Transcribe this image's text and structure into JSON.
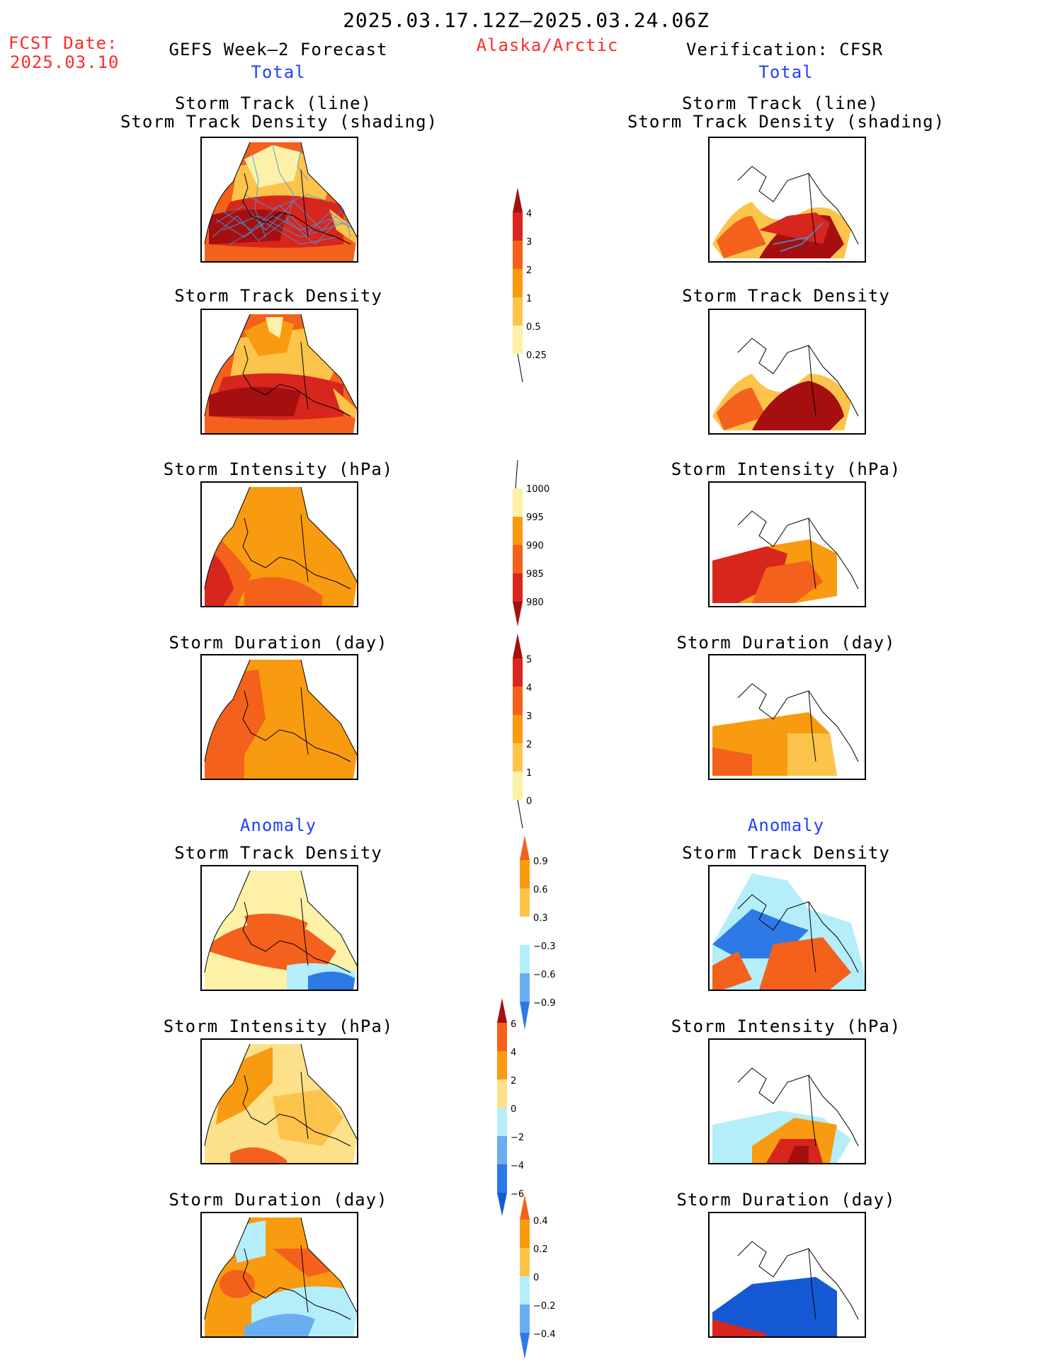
{
  "header": {
    "period": "2025.03.17.12Z–2025.03.24.06Z",
    "fcst_label": "FCST Date:",
    "fcst_date": "2025.03.10",
    "left_title": "GEFS Week–2 Forecast",
    "region": "Alaska/Arctic",
    "right_title": "Verification: CFSR"
  },
  "sections": {
    "total": "Total",
    "anomaly": "Anomaly"
  },
  "panel_titles": {
    "track_line": "Storm Track (line)",
    "track_density_shading": "Storm Track Density (shading)",
    "track_density": "Storm Track Density",
    "intensity": "Storm Intensity (hPa)",
    "duration": "Storm Duration (day)"
  },
  "colorbars": {
    "density": [
      "4",
      "3",
      "2",
      "1",
      "0.5",
      "0.25"
    ],
    "intensity": [
      "1000",
      "995",
      "990",
      "985",
      "980"
    ],
    "duration": [
      "5",
      "4",
      "3",
      "2",
      "1",
      "0"
    ],
    "anom_density": [
      "0.9",
      "0.6",
      "0.3",
      "−0.3",
      "−0.6",
      "−0.9"
    ],
    "anom_intensity": [
      "6",
      "4",
      "2",
      "0",
      "−2",
      "−4",
      "−6"
    ],
    "anom_duration": [
      "0.4",
      "0.2",
      "0",
      "−0.2",
      "−0.4"
    ]
  },
  "colors": {
    "title_red": "#ff2a2a",
    "title_blue": "#1f3fff",
    "dark_red": "#a50f0f",
    "red": "#d7261e",
    "orange_red": "#f4611c",
    "orange": "#f99b10",
    "light_orange": "#fcc44a",
    "pale_yellow": "#fdf1a8",
    "light_blue": "#b4eefa",
    "mid_blue": "#6aaef2",
    "blue": "#2d7ae6",
    "dark_blue": "#1558d4",
    "track_line": "#3a9de8"
  }
}
